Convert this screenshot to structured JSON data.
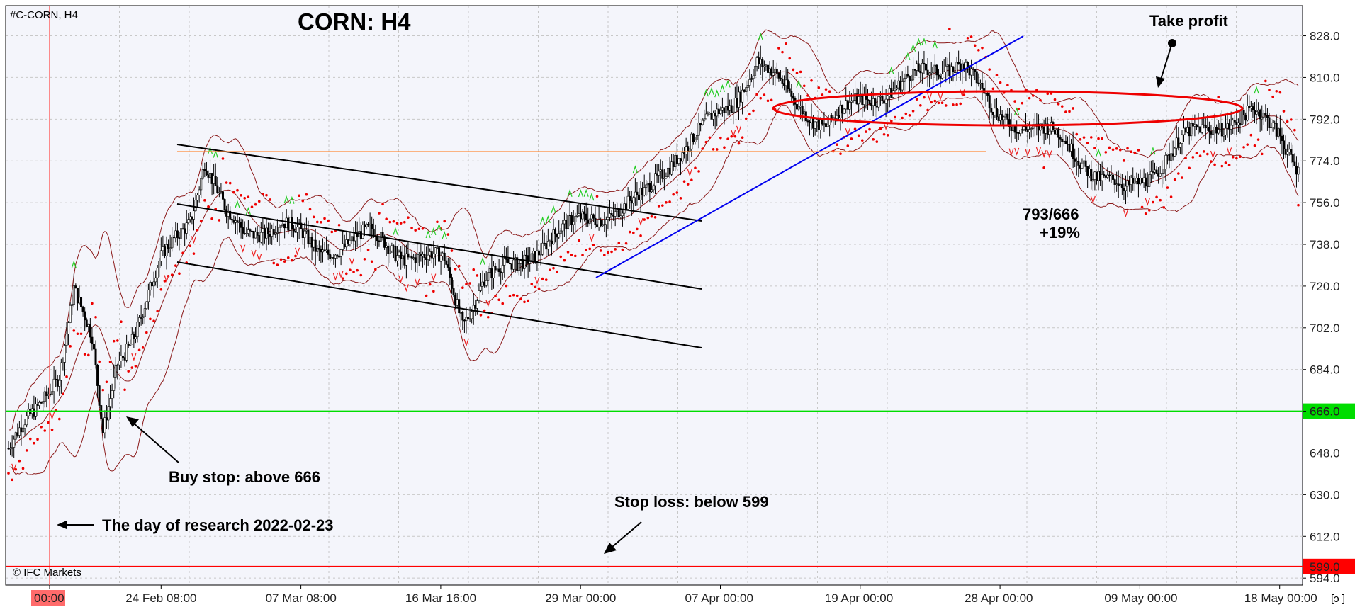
{
  "symbol_label": "#C-CORN, H4",
  "copyright": "© IFC Markets",
  "corner_icon": "[ↄ ]",
  "chart_data": {
    "type": "candlestick",
    "title": "CORN: H4",
    "yticks": [
      594.0,
      612.0,
      630.0,
      648.0,
      666.0,
      684.0,
      702.0,
      720.0,
      738.0,
      756.0,
      774.0,
      792.0,
      810.0,
      828.0
    ],
    "ylim": [
      591,
      841
    ],
    "xlabels": [
      "00:00",
      "24 Feb 08:00",
      "07 Mar 08:00",
      "16 Mar 16:00",
      "29 Mar 00:00",
      "07 Apr 00:00",
      "19 Apr 00:00",
      "28 Apr 00:00",
      "09 May 00:00",
      "18 May 00:00"
    ],
    "grid": true,
    "price_levels": [
      {
        "label": "666.0",
        "value": 666.0,
        "color": "#00dd00",
        "style": "solid"
      },
      {
        "label": "599.0",
        "value": 599.0,
        "color": "#ff0000",
        "style": "solid"
      },
      {
        "label": "",
        "value": 778.0,
        "color": "#ff8c3a",
        "style": "solid"
      }
    ],
    "annotations": [
      {
        "text": "Take profit"
      },
      {
        "text": "Buy stop: above 666"
      },
      {
        "text": "Stop loss: below 599"
      },
      {
        "text": "The day of research 2022-02-23"
      },
      {
        "text": "793/666"
      },
      {
        "text": "+19%"
      }
    ],
    "colors": {
      "bollinger": "#8b1a1a",
      "sar": "#ee0000",
      "fractal_up": "#22cc22",
      "fractal_down": "#ee2222",
      "trendline": "#0000ee",
      "channel": "#000000",
      "research_line": "#ff6666",
      "tp_ellipse": "#ee0000",
      "candle": "#000000",
      "background": "#f4f5fb"
    }
  }
}
